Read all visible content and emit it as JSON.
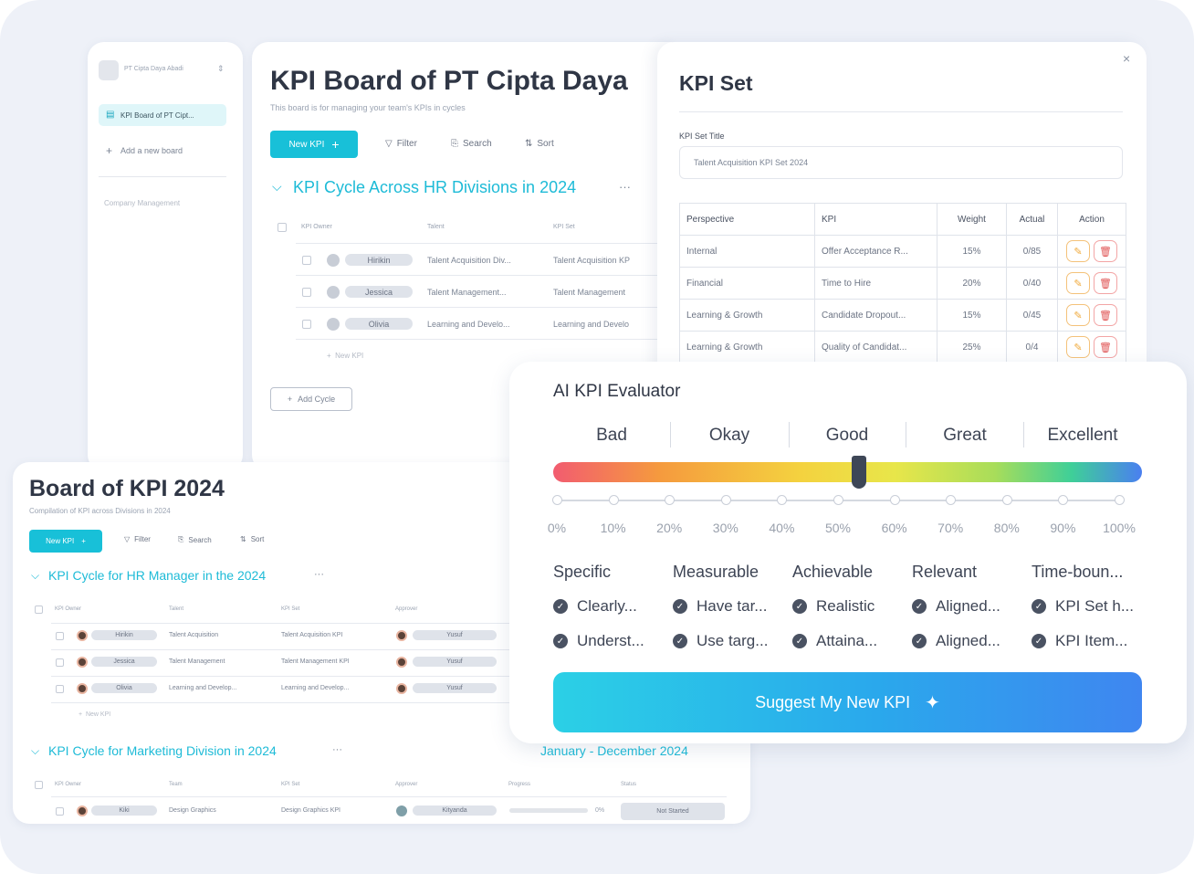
{
  "sidebar": {
    "org_name": "PT Cipta Daya Abadi",
    "board_item": "KPI Board of PT Cipt...",
    "add_board": "Add a new board",
    "section": "Company Management"
  },
  "board1": {
    "title": "KPI Board of PT Cipta Daya",
    "subtitle": "This board is for managing your team's KPIs in cycles",
    "new_kpi": "New KPI",
    "filter": "Filter",
    "search": "Search",
    "sort": "Sort",
    "cycle_title": "KPI Cycle Across HR Divisions in 2024",
    "columns": [
      "KPI Owner",
      "Talent",
      "KPI Set"
    ],
    "rows": [
      {
        "owner": "Hirikin",
        "talent": "Talent Acquisition Div...",
        "kpiset": "Talent Acquisition KP"
      },
      {
        "owner": "Jessica",
        "talent": "Talent Management...",
        "kpiset": "Talent Management"
      },
      {
        "owner": "Olivia",
        "talent": "Learning and Develo...",
        "kpiset": "Learning and Develo"
      }
    ],
    "new_kpi_row": "New KPI",
    "add_cycle": "Add Cycle"
  },
  "kpiset": {
    "title": "KPI Set",
    "field_label": "KPI Set Title",
    "field_value": "Talent Acquisition KPI Set 2024",
    "headers": [
      "Perspective",
      "KPI",
      "Weight",
      "Actual",
      "Action"
    ],
    "rows": [
      {
        "perspective": "Internal",
        "kpi": "Offer Acceptance R...",
        "weight": "15%",
        "actual": "0/85"
      },
      {
        "perspective": "Financial",
        "kpi": "Time to Hire",
        "weight": "20%",
        "actual": "0/40"
      },
      {
        "perspective": "Learning & Growth",
        "kpi": "Candidate Dropout...",
        "weight": "15%",
        "actual": "0/45"
      },
      {
        "perspective": "Learning & Growth",
        "kpi": "Quality of Candidat...",
        "weight": "25%",
        "actual": "0/4"
      }
    ]
  },
  "board2": {
    "title": "Board of KPI 2024",
    "subtitle": "Compilation of KPI across Divisions in 2024",
    "new_kpi": "New KPI",
    "filter": "Filter",
    "search": "Search",
    "sort": "Sort",
    "cycle1_title": "KPI Cycle for HR Manager in the 2024",
    "columns": [
      "KPI Owner",
      "Talent",
      "KPI Set",
      "Approver"
    ],
    "rows": [
      {
        "owner": "Hirikin",
        "talent": "Talent Acquisition",
        "kpiset": "Talent Acquisition KPI",
        "approver": "Yusuf"
      },
      {
        "owner": "Jessica",
        "talent": "Talent Management",
        "kpiset": "Talent Management KPI",
        "approver": "Yusuf"
      },
      {
        "owner": "Olivia",
        "talent": "Learning and Develop...",
        "kpiset": "Learning and Develop...",
        "approver": "Yusuf"
      }
    ],
    "new_kpi_row": "New KPI",
    "cycle2_title": "KPI Cycle for Marketing Division in 2024",
    "cycle2_date": "January - December 2024",
    "columns2": [
      "KPI Owner",
      "Team",
      "KPI Set",
      "Approver",
      "Progress",
      "Status"
    ],
    "row2": {
      "owner": "Kiki",
      "team": "Design Graphics",
      "kpiset": "Design Graphics KPI",
      "approver": "Kityanda",
      "progress_pct": "0%",
      "status": "Not Started"
    }
  },
  "evaluator": {
    "title": "AI KPI Evaluator",
    "grades": [
      "Bad",
      "Okay",
      "Good",
      "Great",
      "Excellent"
    ],
    "percent_labels": [
      "0%",
      "10%",
      "20%",
      "30%",
      "40%",
      "50%",
      "60%",
      "70%",
      "80%",
      "90%",
      "100%"
    ],
    "score_fraction": 0.52,
    "criteria": [
      {
        "name": "Specific",
        "items": [
          "Clearly...",
          "Underst..."
        ]
      },
      {
        "name": "Measurable",
        "items": [
          "Have tar...",
          "Use targ..."
        ]
      },
      {
        "name": "Achievable",
        "items": [
          "Realistic",
          "Attaina..."
        ]
      },
      {
        "name": "Relevant",
        "items": [
          "Aligned...",
          "Aligned..."
        ]
      },
      {
        "name": "Time-boun...",
        "items": [
          "KPI Set h...",
          "KPI Item..."
        ]
      }
    ],
    "suggest_label": "Suggest My New KPI"
  },
  "colors": {
    "accent": "#18c0d8",
    "brand_gradient_start": "#2bd0e6",
    "brand_gradient_end": "#3f86f0"
  },
  "icons": [
    "board-icon",
    "plus-icon",
    "filter-icon",
    "search-icon",
    "sort-icon",
    "chevron-down-icon",
    "more-icon",
    "close-icon",
    "edit-icon",
    "trash-icon",
    "check-icon",
    "sparkle-icon"
  ]
}
